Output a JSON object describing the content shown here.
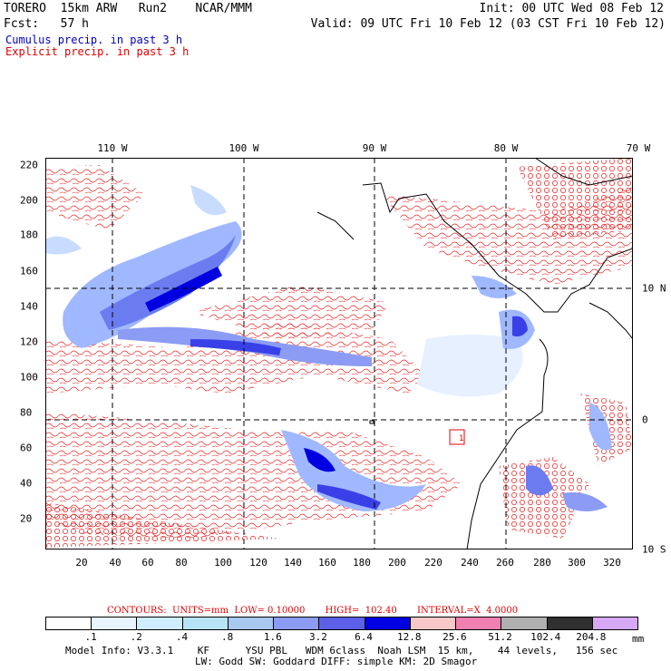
{
  "header": {
    "model_line": "TORERO  15km ARW   Run2    NCAR/MMM",
    "init_line": "Init: 00 UTC Wed 08 Feb 12",
    "fcst_line": "Fcst:   57 h",
    "valid_line": "Valid: 09 UTC Fri 10 Feb 12 (03 CST Fri 10 Feb 12)",
    "cumulus_label": "Cumulus precip. in past 3 h",
    "explicit_label": "Explicit precip. in past 3 h",
    "cumulus_color": "#0000c0",
    "explicit_color": "#e00000"
  },
  "map": {
    "x_ticks": [
      "20",
      "40",
      "60",
      "80",
      "100",
      "120",
      "140",
      "160",
      "180",
      "200",
      "220",
      "240",
      "260",
      "280",
      "300",
      "320"
    ],
    "y_ticks": [
      "220",
      "200",
      "180",
      "160",
      "140",
      "120",
      "100",
      "80",
      "60",
      "40",
      "20"
    ],
    "lon_labels": [
      "110 W",
      "100 W",
      "90 W",
      "80 W",
      "70 W"
    ],
    "lat_labels": [
      "10 N",
      "0",
      "10 S"
    ],
    "station_label": "1",
    "precip_palette": [
      "#ffffff",
      "#e6f0ff",
      "#c8dcff",
      "#a0b8ff",
      "#6a7cf0",
      "#3a40e8",
      "#0000e0"
    ],
    "contour_color": "#e00000"
  },
  "contours": {
    "text": "CONTOURS:  UNITS=mm  LOW= 0.10000       HIGH=  102.40       INTERVAL=X  4.0000"
  },
  "colorbar": {
    "labels": [
      ".1",
      ".2",
      ".4",
      ".8",
      "1.6",
      "3.2",
      "6.4",
      "12.8",
      "25.6",
      "51.2",
      "102.4",
      "204.8"
    ],
    "colors": [
      "#ffffff",
      "#e8f4ff",
      "#d0ecff",
      "#b8e4f8",
      "#a8c8f0",
      "#8c9cf4",
      "#5c60e8",
      "#0000e0",
      "#f8c8c8",
      "#f080b0",
      "#b0b0b0",
      "#303030",
      "#d8a8f8"
    ],
    "units": "mm"
  },
  "footer": {
    "line1": "Model Info: V3.3.1    KF      YSU PBL   WDM 6class  Noah LSM  15 km,    44 levels,   156 sec",
    "line2": "LW: Godd SW: Goddard DIFF: simple KM: 2D Smagor"
  }
}
